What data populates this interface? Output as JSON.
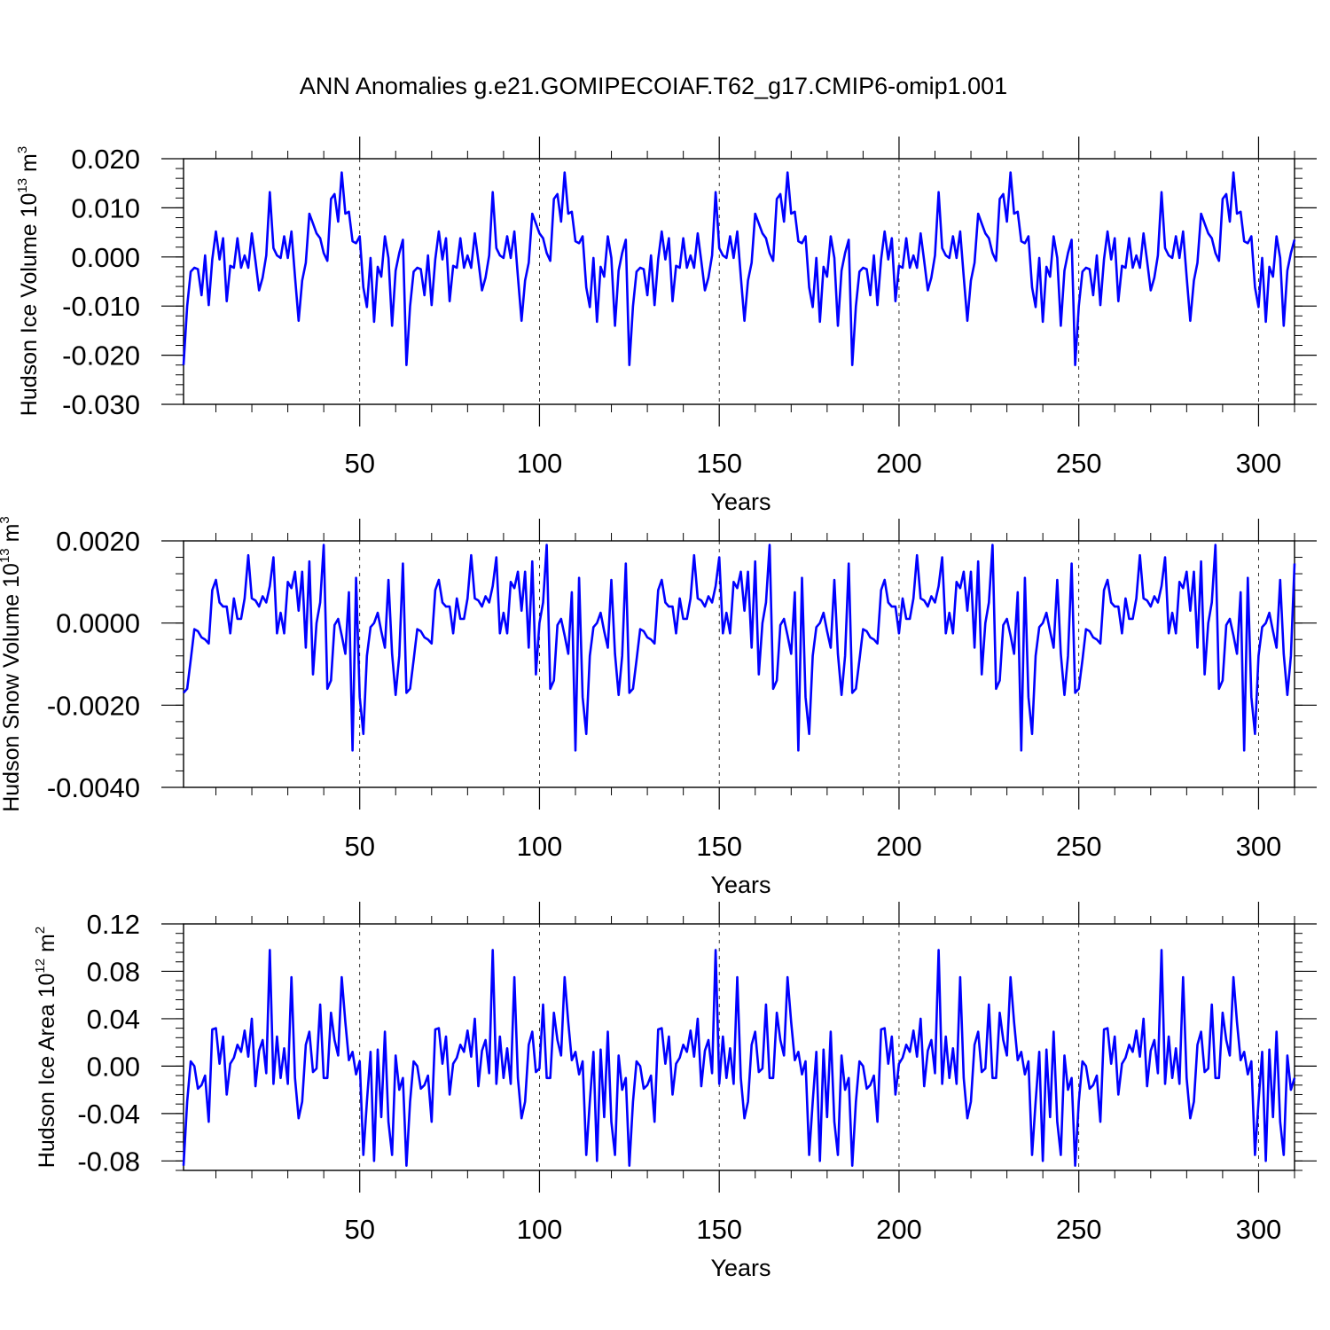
{
  "title": "ANN Anomalies g.e21.GOMIPECOIAF.T62_g17.CMIP6-omip1.001",
  "colors": {
    "series": "#0000ff",
    "axis": "#000000",
    "refline": "#000000",
    "background": "#ffffff"
  },
  "chart_data": [
    {
      "type": "line",
      "name": "ice-volume",
      "ylabel": {
        "prefix": "Hudson Ice Volume 10",
        "exp": "13",
        "unit": " m",
        "unit_exp": "3"
      },
      "xlabel": "Years",
      "xlim": [
        1,
        310
      ],
      "ylim": [
        -0.03,
        0.02
      ],
      "xticks": [
        50,
        100,
        150,
        200,
        250,
        300
      ],
      "xtick_labels": [
        "50",
        "100",
        "150",
        "200",
        "250",
        "300"
      ],
      "yticks": [
        -0.03,
        -0.02,
        -0.01,
        0.0,
        0.01,
        0.02
      ],
      "ytick_labels": [
        "-0.030",
        "-0.020",
        "-0.010",
        "0.000",
        "0.010",
        "0.020"
      ],
      "reference_lines_x": [
        50,
        100,
        150,
        200,
        250,
        300
      ],
      "period": 62,
      "base_cycle": [
        -0.022,
        -0.01,
        -0.003,
        -0.0022,
        -0.0025,
        -0.0078,
        0.0003,
        -0.0098,
        -0.0005,
        0.0052,
        -0.0005,
        0.0038,
        -0.009,
        -0.0018,
        -0.0022,
        0.0038,
        -0.0022,
        0.0003,
        -0.0022,
        0.0048,
        -0.0008,
        -0.0068,
        -0.0042,
        0.0003,
        0.0132,
        0.0018,
        0.0003,
        -0.0002,
        0.0042,
        -0.0002,
        0.0052,
        -0.004,
        -0.013,
        -0.0048,
        -0.0012,
        0.0088,
        0.0068,
        0.0048,
        0.0038,
        0.0008,
        -0.0008,
        0.0118,
        0.0128,
        0.0072,
        0.0172,
        0.0088,
        0.0092,
        0.0032,
        0.0028,
        0.0042,
        -0.0062,
        -0.0102,
        -0.0002,
        -0.0132,
        -0.002,
        -0.004,
        0.0042,
        -0.0002,
        -0.014,
        -0.0028,
        0.0008,
        0.0035
      ]
    },
    {
      "type": "line",
      "name": "snow-volume",
      "ylabel": {
        "prefix": "Hudson Snow Volume 10",
        "exp": "13",
        "unit": " m",
        "unit_exp": "3"
      },
      "xlabel": "Years",
      "xlim": [
        1,
        310
      ],
      "ylim": [
        -0.004,
        0.002
      ],
      "xticks": [
        50,
        100,
        150,
        200,
        250,
        300
      ],
      "xtick_labels": [
        "50",
        "100",
        "150",
        "200",
        "250",
        "300"
      ],
      "yticks": [
        -0.004,
        -0.002,
        0.0,
        0.002
      ],
      "ytick_labels": [
        "-0.0040",
        "-0.0020",
        "0.0000",
        "0.0020"
      ],
      "reference_lines_x": [
        50,
        100,
        150,
        200,
        250,
        300
      ],
      "period": 62,
      "base_cycle": [
        -0.0017,
        -0.0016,
        -0.0009,
        -0.00015,
        -0.0002,
        -0.00035,
        -0.0004,
        -0.0005,
        0.0008,
        0.00105,
        0.0005,
        0.0004,
        0.0004,
        -0.00025,
        0.0006,
        0.0001,
        0.0001,
        0.0006,
        0.00165,
        0.0006,
        0.00055,
        0.0004,
        0.00065,
        0.0005,
        0.0009,
        0.0016,
        -0.00025,
        0.00025,
        -0.00025,
        0.001,
        0.00085,
        0.00125,
        0.0003,
        0.00125,
        -0.0006,
        0.0015,
        -0.00125,
        0.0,
        0.0005,
        0.0019,
        -0.0016,
        -0.0014,
        -5e-05,
        0.0001,
        -0.0003,
        -0.00075,
        0.00075,
        -0.0031,
        0.0011,
        -0.0018,
        -0.0027,
        -0.0008,
        -0.0001,
        0.0,
        0.00025,
        -0.0002,
        -0.0006,
        0.00105,
        -0.00075,
        -0.00175,
        -0.0008,
        0.00145
      ]
    },
    {
      "type": "line",
      "name": "ice-area",
      "ylabel": {
        "prefix": "Hudson Ice Area 10",
        "exp": "12",
        "unit": " m",
        "unit_exp": "2"
      },
      "xlabel": "Years",
      "xlim": [
        1,
        310
      ],
      "ylim": [
        -0.088,
        0.12
      ],
      "xticks": [
        50,
        100,
        150,
        200,
        250,
        300
      ],
      "xtick_labels": [
        "50",
        "100",
        "150",
        "200",
        "250",
        "300"
      ],
      "yticks": [
        -0.08,
        -0.04,
        0.0,
        0.04,
        0.08,
        0.12
      ],
      "ytick_labels": [
        "-0.08",
        "-0.04",
        "0.00",
        "0.04",
        "0.08",
        "0.12"
      ],
      "reference_lines_x": [
        50,
        100,
        150,
        200,
        250,
        300
      ],
      "period": 62,
      "base_cycle": [
        -0.084,
        -0.03,
        0.004,
        0.0,
        -0.019,
        -0.016,
        -0.008,
        -0.047,
        0.031,
        0.032,
        0.002,
        0.025,
        -0.024,
        0.002,
        0.007,
        0.018,
        0.012,
        0.03,
        0.008,
        0.04,
        -0.017,
        0.013,
        0.022,
        -0.006,
        0.098,
        -0.015,
        0.025,
        -0.01,
        0.015,
        -0.015,
        0.075,
        -0.01,
        -0.044,
        -0.03,
        0.018,
        0.029,
        -0.005,
        -0.002,
        0.052,
        -0.01,
        -0.01,
        0.045,
        0.022,
        0.009,
        0.075,
        0.037,
        0.005,
        0.012,
        -0.007,
        0.004,
        -0.075,
        -0.03,
        0.012,
        -0.08,
        0.014,
        -0.043,
        0.029,
        -0.047,
        -0.075,
        0.009,
        -0.02,
        -0.01
      ]
    }
  ]
}
